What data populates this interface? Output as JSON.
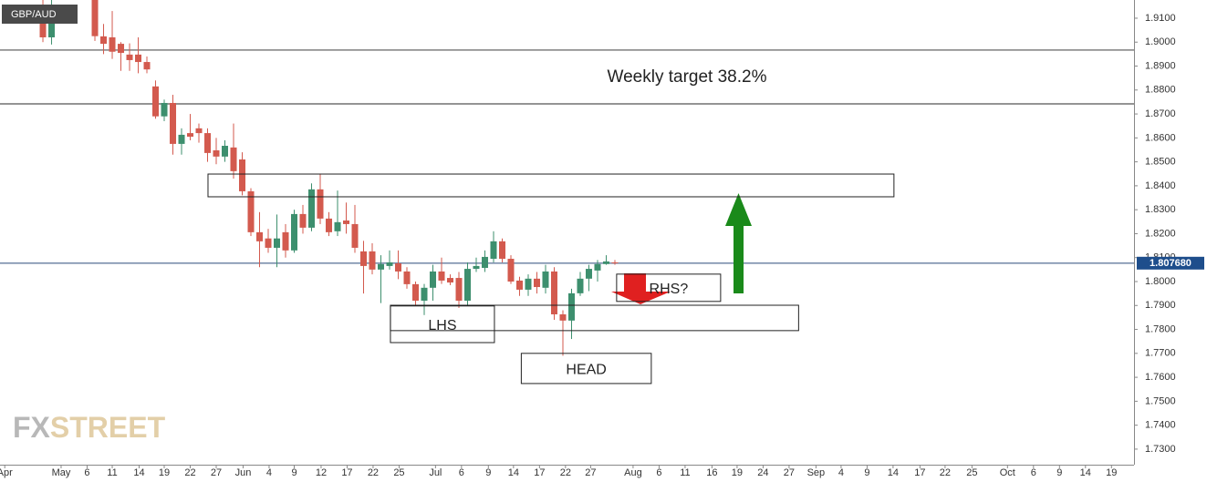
{
  "chart_data": {
    "type": "candlestick",
    "symbol": "GBP/AUD",
    "watermark": [
      "FX",
      "STREET"
    ],
    "annotation": "Weekly target 38.2%",
    "up_color": "#3d8f6e",
    "down_color": "#d35a4e",
    "x": [
      4,
      5,
      10,
      11,
      12,
      13,
      14,
      15,
      16,
      17,
      18,
      19,
      20,
      21,
      22,
      23,
      24,
      25,
      26,
      27,
      28,
      29,
      30,
      31,
      32,
      33,
      34,
      35,
      36,
      37,
      38,
      39,
      40,
      41,
      42,
      43,
      44,
      45,
      46,
      47,
      48,
      49,
      50,
      51,
      52,
      53,
      54,
      55,
      56,
      57,
      58,
      59,
      60,
      61,
      62,
      63,
      64,
      65,
      66,
      67,
      68,
      69,
      70
    ],
    "open": [
      1.915,
      1.902,
      1.919,
      1.9024,
      1.902,
      1.8993,
      1.8948,
      1.8948,
      1.8917,
      1.8815,
      1.869,
      1.8746,
      1.8575,
      1.862,
      1.864,
      1.862,
      1.8548,
      1.8522,
      1.856,
      1.851,
      1.8377,
      1.8206,
      1.818,
      1.8141,
      1.8206,
      1.813,
      1.8282,
      1.8225,
      1.8385,
      1.8263,
      1.821,
      1.8255,
      1.824,
      1.8126,
      1.8126,
      1.805,
      1.8065,
      1.8076,
      1.8042,
      1.7989,
      1.792,
      1.7974,
      1.8042,
      1.8015,
      1.8015,
      1.792,
      1.8053,
      1.8057,
      1.8095,
      1.8168,
      1.8095,
      1.8004,
      1.7966,
      1.8012,
      1.7974,
      1.8042,
      1.7863,
      1.7837,
      1.7951,
      1.8012,
      1.8046,
      1.8073,
      1.808
    ],
    "high": [
      1.92,
      1.918,
      1.922,
      1.9076,
      1.913,
      1.9,
      1.8995,
      1.902,
      1.894,
      1.884,
      1.876,
      1.878,
      1.864,
      1.87,
      1.866,
      1.864,
      1.86,
      1.859,
      1.866,
      1.854,
      1.839,
      1.829,
      1.822,
      1.828,
      1.824,
      1.83,
      1.832,
      1.841,
      1.845,
      1.829,
      1.838,
      1.833,
      1.832,
      1.817,
      1.816,
      1.811,
      1.813,
      1.813,
      1.806,
      1.8,
      1.799,
      1.807,
      1.81,
      1.803,
      1.804,
      1.808,
      1.81,
      1.813,
      1.821,
      1.818,
      1.811,
      1.802,
      1.803,
      1.804,
      1.807,
      1.806,
      1.788,
      1.797,
      1.804,
      1.807,
      1.809,
      1.811,
      1.809
    ],
    "low": [
      1.9,
      1.899,
      1.9005,
      1.895,
      1.893,
      1.888,
      1.888,
      1.887,
      1.887,
      1.868,
      1.867,
      1.853,
      1.853,
      1.859,
      1.858,
      1.85,
      1.849,
      1.85,
      1.843,
      1.836,
      1.819,
      1.806,
      1.812,
      1.806,
      1.81,
      1.812,
      1.82,
      1.821,
      1.824,
      1.819,
      1.819,
      1.82,
      1.812,
      1.795,
      1.803,
      1.791,
      1.805,
      1.801,
      1.797,
      1.79,
      1.786,
      1.792,
      1.799,
      1.7985,
      1.789,
      1.79,
      1.804,
      1.804,
      1.808,
      1.808,
      1.799,
      1.794,
      1.794,
      1.795,
      1.795,
      1.784,
      1.769,
      1.776,
      1.794,
      1.796,
      1.8,
      1.807,
      1.807
    ],
    "close": [
      1.902,
      1.912,
      1.9025,
      1.8993,
      1.896,
      1.8955,
      1.8925,
      1.8917,
      1.8886,
      1.869,
      1.8746,
      1.8575,
      1.8613,
      1.8605,
      1.862,
      1.8537,
      1.8522,
      1.8567,
      1.8461,
      1.8377,
      1.8206,
      1.8168,
      1.8141,
      1.818,
      1.813,
      1.8282,
      1.8225,
      1.8385,
      1.8263,
      1.8206,
      1.8248,
      1.824,
      1.8141,
      1.8065,
      1.805,
      1.8073,
      1.808,
      1.8042,
      1.7989,
      1.792,
      1.7974,
      1.8042,
      1.8004,
      1.7996,
      1.792,
      1.8053,
      1.8065,
      1.8103,
      1.8168,
      1.8095,
      1.8,
      1.7966,
      1.8012,
      1.7977,
      1.8042,
      1.7863,
      1.7837,
      1.7951,
      1.8012,
      1.8053,
      1.8073,
      1.8084,
      1.8077
    ],
    "xlim": [
      -0.95,
      129.9
    ],
    "ylim": [
      1.7235,
      1.9176
    ],
    "xticks": [
      {
        "value": -0.4,
        "label": "Apr"
      },
      {
        "value": 6.1,
        "label": "May"
      },
      {
        "value": 9.1,
        "label": "6"
      },
      {
        "value": 12.0,
        "label": "11"
      },
      {
        "value": 15.1,
        "label": "14"
      },
      {
        "value": 18.0,
        "label": "19"
      },
      {
        "value": 21.0,
        "label": "22"
      },
      {
        "value": 24.0,
        "label": "27"
      },
      {
        "value": 27.1,
        "label": "Jun"
      },
      {
        "value": 30.1,
        "label": "4"
      },
      {
        "value": 33.0,
        "label": "9"
      },
      {
        "value": 36.1,
        "label": "12"
      },
      {
        "value": 39.1,
        "label": "17"
      },
      {
        "value": 42.1,
        "label": "22"
      },
      {
        "value": 45.1,
        "label": "25"
      },
      {
        "value": 49.3,
        "label": "Jul"
      },
      {
        "value": 52.3,
        "label": "6"
      },
      {
        "value": 55.4,
        "label": "9"
      },
      {
        "value": 58.3,
        "label": "14"
      },
      {
        "value": 61.3,
        "label": "17"
      },
      {
        "value": 64.3,
        "label": "22"
      },
      {
        "value": 67.2,
        "label": "27"
      },
      {
        "value": 72.1,
        "label": "Aug"
      },
      {
        "value": 75.1,
        "label": "6"
      },
      {
        "value": 78.1,
        "label": "11"
      },
      {
        "value": 81.2,
        "label": "16"
      },
      {
        "value": 84.1,
        "label": "19"
      },
      {
        "value": 87.1,
        "label": "24"
      },
      {
        "value": 90.1,
        "label": "27"
      },
      {
        "value": 93.2,
        "label": "Sep"
      },
      {
        "value": 96.1,
        "label": "4"
      },
      {
        "value": 99.1,
        "label": "9"
      },
      {
        "value": 102.1,
        "label": "14"
      },
      {
        "value": 105.2,
        "label": "17"
      },
      {
        "value": 108.1,
        "label": "22"
      },
      {
        "value": 111.2,
        "label": "25"
      },
      {
        "value": 115.3,
        "label": "Oct"
      },
      {
        "value": 118.3,
        "label": "6"
      },
      {
        "value": 121.3,
        "label": "9"
      },
      {
        "value": 124.3,
        "label": "14"
      },
      {
        "value": 127.3,
        "label": "19"
      }
    ],
    "yticks": [
      {
        "value": 1.73,
        "label": "1.7300"
      },
      {
        "value": 1.74,
        "label": "1.7400"
      },
      {
        "value": 1.75,
        "label": "1.7500"
      },
      {
        "value": 1.76,
        "label": "1.7600"
      },
      {
        "value": 1.77,
        "label": "1.7700"
      },
      {
        "value": 1.78,
        "label": "1.7800"
      },
      {
        "value": 1.79,
        "label": "1.7900"
      },
      {
        "value": 1.8,
        "label": "1.8000"
      },
      {
        "value": 1.81,
        "label": "1.8100"
      },
      {
        "value": 1.82,
        "label": "1.8200"
      },
      {
        "value": 1.83,
        "label": "1.8300"
      },
      {
        "value": 1.84,
        "label": "1.8400"
      },
      {
        "value": 1.85,
        "label": "1.8500"
      },
      {
        "value": 1.86,
        "label": "1.8600"
      },
      {
        "value": 1.87,
        "label": "1.8700"
      },
      {
        "value": 1.88,
        "label": "1.8800"
      },
      {
        "value": 1.89,
        "label": "1.8900"
      },
      {
        "value": 1.9,
        "label": "1.9000"
      },
      {
        "value": 1.91,
        "label": "1.9100"
      }
    ],
    "hlines": [
      1.8967,
      1.8742
    ],
    "last_price": {
      "value": 1.80768,
      "label": "1.807680"
    },
    "zones": [
      {
        "x": [
          23.05,
          102.2
        ],
        "y": [
          1.8354,
          1.8449
        ]
      },
      {
        "x": [
          44.1,
          91.2
        ],
        "y": [
          1.7795,
          1.7901
        ]
      },
      {
        "x": [
          44.1,
          56.1
        ],
        "y": [
          1.7745,
          1.7898
        ],
        "label": "LHS"
      },
      {
        "x": [
          59.2,
          74.2
        ],
        "y": [
          1.7574,
          1.77
        ],
        "label": "HEAD"
      },
      {
        "x": [
          70.2,
          82.2
        ],
        "y": [
          1.7917,
          1.8031
        ],
        "label": "RHS?"
      }
    ]
  }
}
